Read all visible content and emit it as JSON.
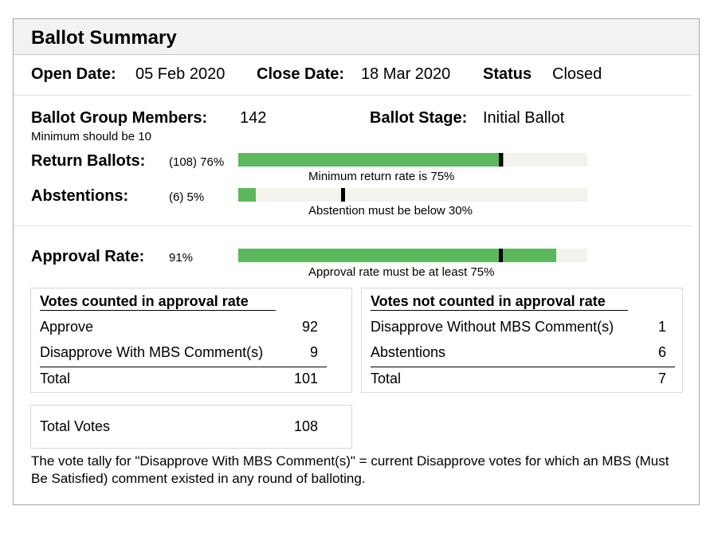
{
  "header": {
    "title": "Ballot Summary"
  },
  "dates": {
    "open_label": "Open Date:",
    "open_value": "05 Feb 2020",
    "close_label": "Close Date:",
    "close_value": "18 Mar 2020",
    "status_label": "Status",
    "status_value": "Closed"
  },
  "group": {
    "members_label": "Ballot Group Members:",
    "members_value": "142",
    "members_note": "Minimum should be 10",
    "stage_label": "Ballot Stage:",
    "stage_value": "Initial Ballot"
  },
  "return_ballots": {
    "label": "Return Ballots:",
    "value_text": "(108) 76%",
    "fill_fraction": 0.76,
    "threshold_fraction": 0.75,
    "note": "Minimum return rate is 75%"
  },
  "abstentions": {
    "label": "Abstentions:",
    "value_text": "(6) 5%",
    "fill_fraction": 0.05,
    "threshold_fraction": 0.3,
    "note": "Abstention must be below 30%"
  },
  "approval": {
    "label": "Approval Rate:",
    "value_text": "91%",
    "fill_fraction": 0.91,
    "threshold_fraction": 0.75,
    "note": "Approval rate must be at least 75%"
  },
  "counted": {
    "title": "Votes counted in approval rate",
    "rows": [
      {
        "label": "Approve",
        "value": "92"
      },
      {
        "label": "Disapprove With MBS Comment(s)",
        "value": "9"
      }
    ],
    "total_label": "Total",
    "total_value": "101"
  },
  "not_counted": {
    "title": "Votes not counted in approval rate",
    "rows": [
      {
        "label": "Disapprove Without MBS Comment(s)",
        "value": "1"
      },
      {
        "label": "Abstentions",
        "value": "6"
      }
    ],
    "total_label": "Total",
    "total_value": "7"
  },
  "total_votes": {
    "label": "Total Votes",
    "value": "108"
  },
  "footnote": "The vote tally for \"Disapprove With MBS Comment(s)\" = current Disapprove votes for which an MBS (Must Be Satisfied) comment existed in any round of balloting.",
  "colors": {
    "bar_fill": "#5cb85c",
    "bar_track": "#f3f2ec",
    "marker": "#000000",
    "header_bg": "#f2f2f2"
  }
}
